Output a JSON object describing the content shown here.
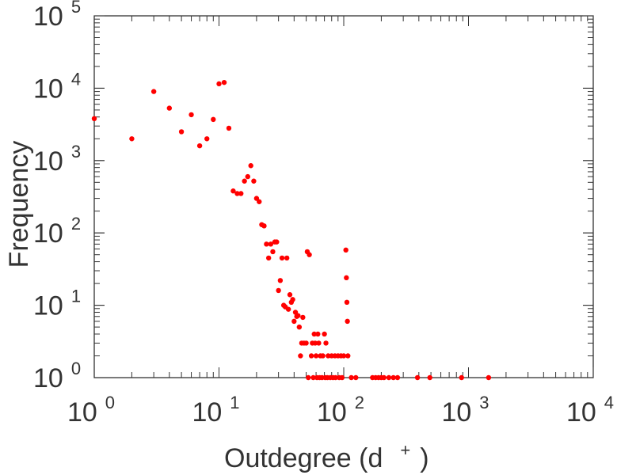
{
  "chart_data": {
    "type": "scatter",
    "xlabel": "Outdegree (d",
    "xlabel_sup": "+",
    "xlabel_close": ")",
    "ylabel": "Frequency",
    "x_scale": "log",
    "y_scale": "log",
    "xlim": [
      1,
      10000
    ],
    "ylim": [
      1,
      100000
    ],
    "x_ticks": [
      {
        "base": "10",
        "exp": "0"
      },
      {
        "base": "10",
        "exp": "1"
      },
      {
        "base": "10",
        "exp": "2"
      },
      {
        "base": "10",
        "exp": "3"
      },
      {
        "base": "10",
        "exp": "4"
      }
    ],
    "y_ticks": [
      {
        "base": "10",
        "exp": "0"
      },
      {
        "base": "10",
        "exp": "1"
      },
      {
        "base": "10",
        "exp": "2"
      },
      {
        "base": "10",
        "exp": "3"
      },
      {
        "base": "10",
        "exp": "4"
      },
      {
        "base": "10",
        "exp": "5"
      }
    ],
    "grid": false,
    "marker_color": "#ff0000",
    "points": [
      [
        1,
        3800
      ],
      [
        2,
        2000
      ],
      [
        3,
        9000
      ],
      [
        4,
        5300
      ],
      [
        5,
        2500
      ],
      [
        6,
        4300
      ],
      [
        7,
        1600
      ],
      [
        8,
        2000
      ],
      [
        9,
        3700
      ],
      [
        10,
        11500
      ],
      [
        11,
        12000
      ],
      [
        12,
        2800
      ],
      [
        13,
        380
      ],
      [
        14,
        350
      ],
      [
        15,
        350
      ],
      [
        16,
        520
      ],
      [
        17,
        600
      ],
      [
        18,
        850
      ],
      [
        19,
        520
      ],
      [
        20,
        300
      ],
      [
        21,
        270
      ],
      [
        22,
        130
      ],
      [
        23,
        125
      ],
      [
        24,
        70
      ],
      [
        25,
        45
      ],
      [
        26,
        70
      ],
      [
        27,
        55
      ],
      [
        28,
        75
      ],
      [
        29,
        75
      ],
      [
        30,
        16
      ],
      [
        31,
        22
      ],
      [
        32,
        45
      ],
      [
        33,
        10
      ],
      [
        34,
        9.5
      ],
      [
        35,
        45
      ],
      [
        36,
        8.8
      ],
      [
        37,
        14
      ],
      [
        38,
        11
      ],
      [
        39,
        12
      ],
      [
        40,
        6
      ],
      [
        41,
        8
      ],
      [
        42,
        7
      ],
      [
        43,
        7.2
      ],
      [
        44,
        5
      ],
      [
        45,
        2
      ],
      [
        46,
        3
      ],
      [
        47,
        6.8
      ],
      [
        48,
        3
      ],
      [
        50,
        3
      ],
      [
        51,
        55
      ],
      [
        53,
        50
      ],
      [
        55,
        2
      ],
      [
        56,
        3
      ],
      [
        58,
        4
      ],
      [
        59,
        3
      ],
      [
        60,
        2
      ],
      [
        62,
        4
      ],
      [
        63,
        3
      ],
      [
        65,
        2
      ],
      [
        68,
        2
      ],
      [
        70,
        4
      ],
      [
        72,
        3
      ],
      [
        75,
        2
      ],
      [
        80,
        2
      ],
      [
        85,
        2
      ],
      [
        90,
        2
      ],
      [
        95,
        2
      ],
      [
        100,
        2
      ],
      [
        104,
        58
      ],
      [
        105,
        24
      ],
      [
        106,
        11
      ],
      [
        107,
        6
      ],
      [
        108,
        2
      ],
      [
        52,
        1
      ],
      [
        57,
        1
      ],
      [
        61,
        1
      ],
      [
        64,
        1
      ],
      [
        67,
        1
      ],
      [
        71,
        1
      ],
      [
        74,
        1
      ],
      [
        78,
        1
      ],
      [
        82,
        1
      ],
      [
        86,
        1
      ],
      [
        92,
        1
      ],
      [
        97,
        1
      ],
      [
        115,
        1
      ],
      [
        125,
        1
      ],
      [
        170,
        1
      ],
      [
        180,
        1
      ],
      [
        190,
        1
      ],
      [
        200,
        1
      ],
      [
        210,
        1
      ],
      [
        230,
        1
      ],
      [
        250,
        1
      ],
      [
        270,
        1
      ],
      [
        390,
        1
      ],
      [
        490,
        1
      ],
      [
        880,
        1
      ],
      [
        1450,
        1
      ]
    ]
  }
}
